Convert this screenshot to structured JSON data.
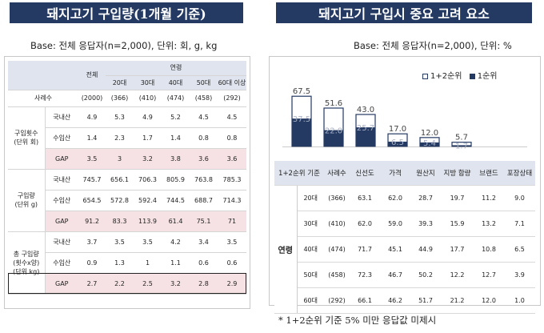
{
  "left": {
    "title": "돼지고기 구입량(1개월 기준)",
    "base": "Base: 전체 응답자(n=2,000), 단위: 회, g, kg",
    "header": {
      "total": "전체",
      "age_group": "연령",
      "ages": [
        "20대",
        "30대",
        "40대",
        "50대",
        "60대 이상"
      ]
    },
    "sample": {
      "label": "사례수",
      "values": [
        "(2000)",
        "(366)",
        "(410)",
        "(474)",
        "(458)",
        "(292)"
      ]
    },
    "sections": [
      {
        "label": "구입횟수\n(단위 회)",
        "rows": [
          {
            "label": "국내산",
            "values": [
              "4.9",
              "5.3",
              "4.9",
              "5.2",
              "4.5",
              "4.5"
            ],
            "gap": false
          },
          {
            "label": "수입산",
            "values": [
              "1.4",
              "2.3",
              "1.7",
              "1.4",
              "0.8",
              "0.8"
            ],
            "gap": false
          },
          {
            "label": "GAP",
            "values": [
              "3.5",
              "3",
              "3.2",
              "3.8",
              "3.6",
              "3.6"
            ],
            "gap": true
          }
        ]
      },
      {
        "label": "구입량\n(단위 g)",
        "rows": [
          {
            "label": "국내산",
            "values": [
              "745.7",
              "656.1",
              "706.3",
              "805.9",
              "763.8",
              "785.3"
            ],
            "gap": false
          },
          {
            "label": "수입산",
            "values": [
              "654.5",
              "572.8",
              "592.4",
              "744.5",
              "688.7",
              "714.3"
            ],
            "gap": false
          },
          {
            "label": "GAP",
            "values": [
              "91.2",
              "83.3",
              "113.9",
              "61.4",
              "75.1",
              "71"
            ],
            "gap": true
          }
        ]
      },
      {
        "label": "총 구입량\n(횟수x양)\n(단위 kg)",
        "rows": [
          {
            "label": "국내산",
            "values": [
              "3.7",
              "3.5",
              "3.5",
              "4.2",
              "3.4",
              "3.5"
            ],
            "gap": false
          },
          {
            "label": "수입산",
            "values": [
              "0.9",
              "1.3",
              "1",
              "1.1",
              "0.6",
              "0.6"
            ],
            "gap": false
          },
          {
            "label": "GAP",
            "values": [
              "2.7",
              "2.2",
              "2.5",
              "3.2",
              "2.8",
              "2.9"
            ],
            "gap": true
          }
        ]
      }
    ]
  },
  "right": {
    "title": "돼지고기 구입시 중요 고려 요소",
    "base": "Base: 전체 응답자(n=2,000), 단위: %",
    "footnote": "* 1+2순위 기준 5% 미만 응답값 미제시",
    "table": {
      "corner": "1+2순위 기준",
      "columns": [
        "사례수",
        "신선도",
        "가격",
        "원산지",
        "지방 함량",
        "브랜드",
        "포장상태"
      ],
      "group_label": "연령",
      "rows": [
        {
          "label": "20대",
          "values": [
            "(366)",
            "63.1",
            "62.0",
            "28.7",
            "19.7",
            "11.2",
            "9.0"
          ]
        },
        {
          "label": "30대",
          "values": [
            "(410)",
            "62.0",
            "59.0",
            "39.3",
            "15.9",
            "13.2",
            "7.1"
          ]
        },
        {
          "label": "40대",
          "values": [
            "(474)",
            "71.7",
            "45.1",
            "44.9",
            "17.7",
            "10.8",
            "6.5"
          ]
        },
        {
          "label": "50대",
          "values": [
            "(458)",
            "72.3",
            "46.7",
            "50.2",
            "12.2",
            "12.7",
            "3.9"
          ]
        },
        {
          "label": "60대",
          "values": [
            "(292)",
            "66.1",
            "46.2",
            "51.7",
            "21.2",
            "12.0",
            "1.0"
          ]
        }
      ]
    }
  },
  "chart_data": {
    "type": "bar",
    "categories": [
      "신선도",
      "가격",
      "원산지",
      "지방 함량",
      "브랜드",
      "포장상태"
    ],
    "series": [
      {
        "name": "1+2순위",
        "values": [
          67.5,
          51.6,
          43.0,
          17.0,
          12.0,
          5.7
        ]
      },
      {
        "name": "1순위",
        "values": [
          37.5,
          22.0,
          25.7,
          6.5,
          5.4,
          1.7
        ]
      }
    ],
    "legend": "top-right",
    "colors": {
      "first": "#243a63",
      "combined": "#ffffff",
      "border": "#243a63"
    }
  },
  "colors": {
    "banner": "#243a63",
    "header_bg": "#dfe4ee",
    "gap_bg": "#f6e2e4"
  }
}
